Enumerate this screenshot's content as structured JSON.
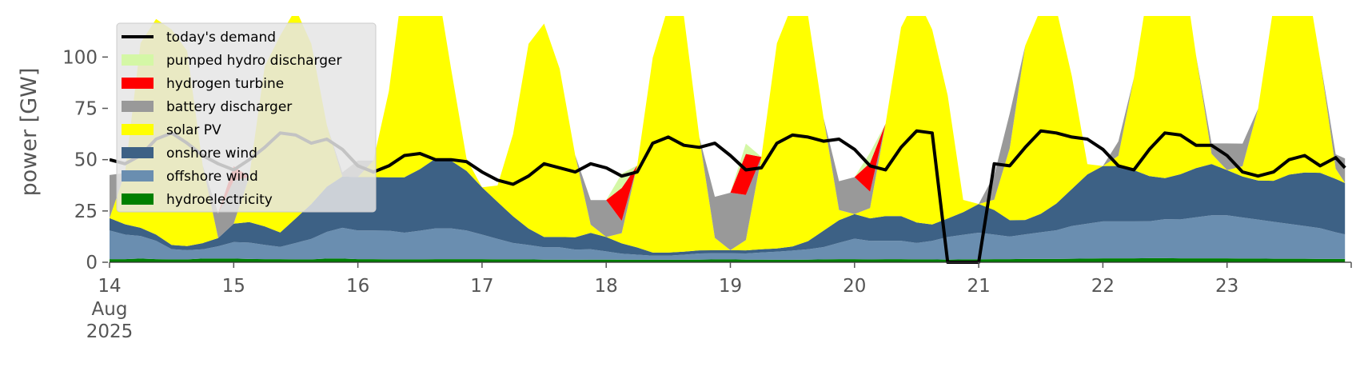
{
  "chart_data": {
    "type": "area",
    "title": "",
    "xlabel": "",
    "ylabel": "power [GW]",
    "xlim": [
      14,
      24
    ],
    "ylim": [
      0,
      120
    ],
    "yticks": [
      0,
      25,
      50,
      75,
      100
    ],
    "x_tick_labels": [
      "14",
      "15",
      "16",
      "17",
      "18",
      "19",
      "20",
      "21",
      "22",
      "23"
    ],
    "x_tick_sub_labels": [
      "Aug",
      "2025"
    ],
    "legend_position": "top-left",
    "grid": false,
    "colors": {
      "hydroelectricity": "#008000",
      "offshore_wind": "#6a8eb0",
      "onshore_wind": "#3d6185",
      "solar_pv": "#ffff00",
      "battery_discharger": "#999999",
      "hydrogen_turbine": "#ff0000",
      "pumped_hydro_discharger": "#d4f7a6",
      "demand": "#000000"
    },
    "legend": [
      {
        "name": "today's demand",
        "kind": "line",
        "color": "#000000"
      },
      {
        "name": "pumped hydro discharger",
        "kind": "patch",
        "color": "#d4f7a6"
      },
      {
        "name": "hydrogen turbine",
        "kind": "patch",
        "color": "#ff0000"
      },
      {
        "name": "battery discharger",
        "kind": "patch",
        "color": "#999999"
      },
      {
        "name": "solar PV",
        "kind": "patch",
        "color": "#ffff00"
      },
      {
        "name": "onshore wind",
        "kind": "patch",
        "color": "#3d6185"
      },
      {
        "name": "offshore wind",
        "kind": "patch",
        "color": "#6a8eb0"
      },
      {
        "name": "hydroelectricity",
        "kind": "patch",
        "color": "#008000"
      }
    ],
    "x": [
      14.0,
      14.125,
      14.25,
      14.375,
      14.5,
      14.625,
      14.75,
      14.875,
      15.0,
      15.125,
      15.25,
      15.375,
      15.5,
      15.625,
      15.75,
      15.875,
      16.0,
      16.125,
      16.25,
      16.375,
      16.5,
      16.625,
      16.75,
      16.875,
      17.0,
      17.125,
      17.25,
      17.375,
      17.5,
      17.625,
      17.75,
      17.875,
      18.0,
      18.125,
      18.25,
      18.375,
      18.5,
      18.625,
      18.75,
      18.875,
      19.0,
      19.125,
      19.25,
      19.375,
      19.5,
      19.625,
      19.75,
      19.875,
      20.0,
      20.125,
      20.25,
      20.375,
      20.5,
      20.625,
      20.75,
      20.875,
      21.0,
      21.125,
      21.25,
      21.375,
      21.5,
      21.625,
      21.75,
      21.875,
      22.0,
      22.125,
      22.25,
      22.375,
      22.5,
      22.625,
      22.75,
      22.875,
      23.0,
      23.125,
      23.25,
      23.375,
      23.5,
      23.625,
      23.75,
      23.875,
      23.95
    ],
    "series": [
      {
        "name": "hydroelectricity",
        "values": [
          1.5,
          1.5,
          1.8,
          1.5,
          1.4,
          1.4,
          1.8,
          1.8,
          1.8,
          1.6,
          1.5,
          1.5,
          1.4,
          1.4,
          1.8,
          1.8,
          1.5,
          1.5,
          1.4,
          1.4,
          1.4,
          1.5,
          1.5,
          1.5,
          1.5,
          1.4,
          1.4,
          1.4,
          1.3,
          1.3,
          1.2,
          1.3,
          1.3,
          1.2,
          1.2,
          1.2,
          1.2,
          1.2,
          1.3,
          1.4,
          1.4,
          1.3,
          1.3,
          1.2,
          1.2,
          1.3,
          1.4,
          1.5,
          1.5,
          1.4,
          1.5,
          1.5,
          1.4,
          1.4,
          1.3,
          1.4,
          1.4,
          1.5,
          1.5,
          1.6,
          1.6,
          1.6,
          1.7,
          1.8,
          1.9,
          1.9,
          1.9,
          2.0,
          2.0,
          1.9,
          1.9,
          1.9,
          1.9,
          1.8,
          1.8,
          1.7,
          1.7,
          1.7,
          1.6,
          1.6,
          1.6
        ]
      },
      {
        "name": "offshore wind",
        "values": [
          14,
          12,
          11,
          9,
          5,
          4.5,
          4.5,
          6,
          8,
          8,
          7,
          6,
          8,
          10,
          13,
          15,
          14,
          14,
          14,
          13,
          14,
          15,
          15,
          14,
          12,
          10,
          8,
          7,
          6,
          6,
          5,
          5,
          4,
          3,
          2.5,
          2,
          2,
          2.5,
          3,
          3,
          3,
          3,
          3.5,
          4,
          4.5,
          5,
          6,
          8,
          10,
          9,
          9,
          9,
          8,
          9,
          11,
          12,
          13,
          12,
          11,
          12,
          13,
          14,
          16,
          17,
          18,
          18,
          18,
          18,
          19,
          19,
          20,
          21,
          21,
          20,
          19,
          18,
          17,
          16,
          15,
          13,
          12
        ]
      },
      {
        "name": "onshore wind",
        "values": [
          6,
          5,
          4,
          3,
          2,
          2,
          3,
          4,
          9,
          10,
          9,
          7,
          12,
          17,
          22,
          25,
          26,
          26,
          26,
          27,
          30,
          34,
          33,
          29,
          23,
          18,
          13,
          8,
          5,
          5,
          6,
          8,
          7,
          5,
          3.5,
          1.5,
          1.5,
          1.5,
          1.5,
          1.5,
          1.5,
          1.5,
          1.5,
          1.5,
          2,
          4,
          8,
          11,
          12,
          11,
          12,
          12,
          10,
          8,
          9,
          11,
          14,
          12,
          8,
          7,
          9,
          13,
          18,
          24,
          27,
          27,
          25,
          22,
          20,
          22,
          24,
          25,
          22,
          20,
          19,
          20,
          24,
          26,
          27,
          26,
          25
        ]
      },
      {
        "name": "solar PV",
        "values": [
          0,
          25,
          90,
          105,
          105,
          95,
          38,
          0,
          0,
          22,
          78,
          96,
          102,
          78,
          30,
          0,
          0,
          8,
          42,
          100,
          115,
          90,
          45,
          6,
          0,
          8,
          40,
          90,
          104,
          82,
          40,
          4,
          0,
          5,
          40,
          95,
          120,
          115,
          55,
          6,
          0,
          5,
          45,
          100,
          118,
          110,
          55,
          5,
          0,
          5,
          45,
          92,
          110,
          95,
          60,
          6,
          0,
          5,
          35,
          85,
          100,
          95,
          55,
          5,
          0,
          5,
          45,
          95,
          118,
          110,
          55,
          5,
          0,
          5,
          35,
          85,
          105,
          100,
          55,
          5,
          0
        ]
      },
      {
        "name": "battery discharger",
        "values": [
          21,
          0,
          0,
          0,
          0,
          0,
          0,
          12,
          21,
          0,
          0,
          0,
          0,
          0,
          0,
          2,
          8,
          0,
          0,
          0,
          0,
          0,
          0,
          0,
          0,
          0,
          0,
          0,
          0,
          0,
          0,
          12,
          18,
          6,
          0,
          0,
          0,
          0,
          0,
          20,
          28,
          22,
          0,
          0,
          0,
          0,
          0,
          14,
          18,
          8,
          0,
          0,
          0,
          0,
          0,
          0,
          0,
          12,
          17,
          0,
          0,
          0,
          0,
          0,
          0,
          7,
          0,
          0,
          0,
          0,
          0,
          5,
          13,
          11,
          0,
          0,
          0,
          0,
          0,
          7,
          12
        ]
      },
      {
        "name": "hydrogen turbine",
        "values": [
          0,
          0,
          0,
          0,
          0,
          0,
          0,
          0,
          7,
          0,
          0,
          0,
          0,
          0,
          0,
          0,
          0,
          0,
          0,
          0,
          0,
          0,
          0,
          0,
          0,
          0,
          0,
          0,
          0,
          0,
          0,
          0,
          0,
          16,
          0,
          0,
          0,
          0,
          0,
          0,
          0,
          20,
          0,
          0,
          0,
          0,
          0,
          0,
          0,
          14,
          0,
          0,
          0,
          0,
          0,
          0,
          0,
          0,
          0,
          0,
          0,
          0,
          0,
          0,
          0,
          0,
          0,
          0,
          0,
          0,
          0,
          0,
          0,
          0,
          0,
          0,
          0,
          0,
          0,
          0,
          0
        ]
      },
      {
        "name": "pumped hydro discharger",
        "values": [
          0,
          0,
          0,
          0,
          0,
          0,
          0,
          0,
          0,
          0,
          0,
          0,
          0,
          0,
          0,
          0,
          0,
          0,
          0,
          0,
          0,
          0,
          0,
          0,
          0,
          0,
          0,
          0,
          0,
          0,
          0,
          0,
          0,
          7,
          0,
          0,
          0,
          0,
          0,
          0,
          0,
          5,
          0,
          0,
          0,
          0,
          0,
          0,
          0,
          5,
          0,
          0,
          0,
          0,
          0,
          0,
          0,
          0,
          0,
          0,
          0,
          0,
          0,
          0,
          0,
          0,
          0,
          0,
          0,
          0,
          0,
          0,
          0,
          0,
          0,
          0,
          0,
          0,
          0,
          0,
          0
        ]
      },
      {
        "name": "today's demand",
        "values": [
          50,
          48,
          52,
          60,
          63,
          58,
          52,
          48,
          45,
          50,
          56,
          63,
          62,
          58,
          60,
          55,
          47,
          44,
          47,
          52,
          53,
          50,
          50,
          49,
          44,
          40,
          38,
          42,
          48,
          46,
          44,
          48,
          46,
          42,
          44,
          58,
          61,
          57,
          56,
          58,
          52,
          45,
          46,
          58,
          62,
          61,
          59,
          60,
          55,
          47,
          45,
          56,
          64,
          63,
          0,
          0,
          0,
          48,
          47,
          56,
          64,
          63,
          61,
          60,
          55,
          47,
          45,
          55,
          63,
          62,
          57,
          57,
          52,
          44,
          42,
          44,
          50,
          52,
          47,
          51,
          46
        ]
      }
    ]
  }
}
